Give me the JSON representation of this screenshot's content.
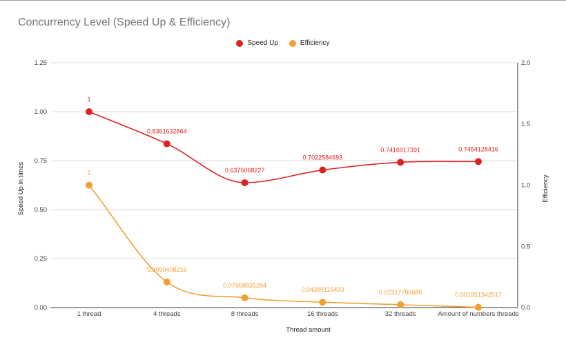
{
  "chart_data": {
    "type": "line",
    "title": "Concurrency Level (Speed Up & Efficiency)",
    "xlabel": "Thread amount",
    "ylabel": "Speed Up in times",
    "y2label": "Efficiency",
    "categories": [
      "1 thread",
      "4 threads",
      "8 threads",
      "16 threads",
      "32 threads",
      "Amount of numbers threads"
    ],
    "ylim": [
      0,
      1.25
    ],
    "y2lim": [
      0,
      2.0
    ],
    "yticks": [
      "0.00",
      "0.25",
      "0.50",
      "0.75",
      "1.00",
      "1.25"
    ],
    "y2ticks": [
      "0.0",
      "0.5",
      "1.0",
      "1.5",
      "2.0"
    ],
    "legend_position": "top",
    "grid": true,
    "series": [
      {
        "name": "Speed Up",
        "axis": "left",
        "color": "#dd2222",
        "values": [
          1,
          0.8361632864,
          0.6375068227,
          0.7022584693,
          0.7416917391,
          0.7454128416
        ],
        "labels": [
          "1",
          "0.8361632864",
          "0.6375068227",
          "0.7022584693",
          "0.7416917391",
          "0.7454128416"
        ]
      },
      {
        "name": "Efficiency",
        "axis": "right",
        "color": "#f0a030",
        "values": [
          1,
          0.2090408216,
          0.07968835284,
          0.04389115433,
          0.02317786685,
          0.001951342517
        ],
        "labels": [
          "1",
          "0.2090408216",
          "0.07968835284",
          "0.04389115433",
          "0.02317786685",
          "0.001951342517"
        ]
      }
    ]
  }
}
